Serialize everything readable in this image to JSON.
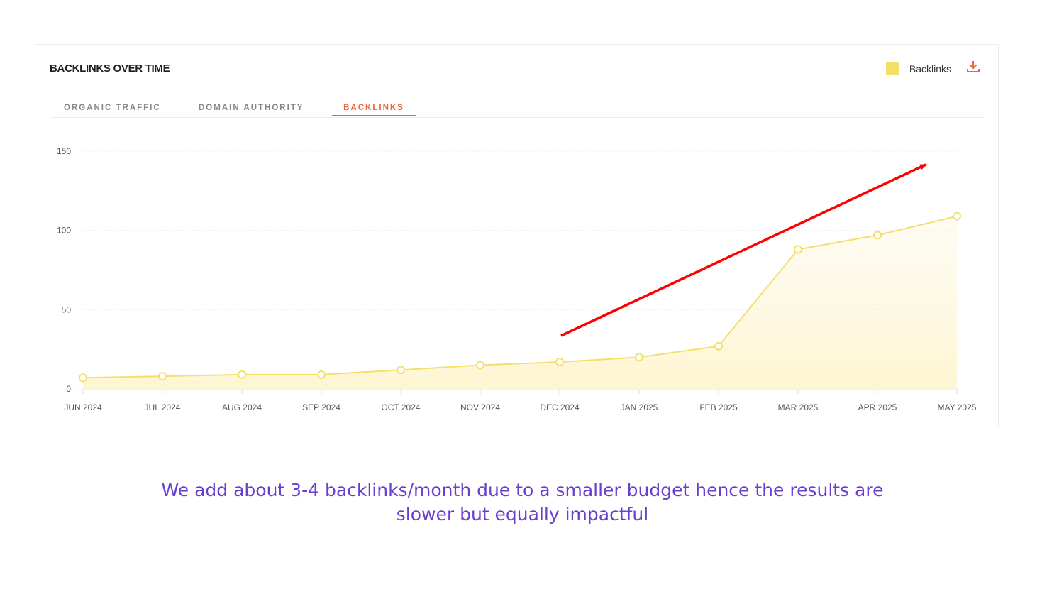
{
  "card": {
    "title": "BACKLINKS OVER TIME",
    "legend_label": "Backlinks",
    "legend_color": "#f4df6b",
    "download_icon": "download-icon",
    "tabs": [
      {
        "label": "ORGANIC TRAFFIC",
        "active": false
      },
      {
        "label": "DOMAIN AUTHORITY",
        "active": false
      },
      {
        "label": "BACKLINKS",
        "active": true
      }
    ],
    "accent_color": "#f0643c"
  },
  "chart_data": {
    "type": "area",
    "categories": [
      "JUN 2024",
      "JUL 2024",
      "AUG 2024",
      "SEP 2024",
      "OCT 2024",
      "NOV 2024",
      "DEC 2024",
      "JAN 2025",
      "FEB 2025",
      "MAR 2025",
      "APR 2025",
      "MAY 2025"
    ],
    "series": [
      {
        "name": "Backlinks",
        "values": [
          7,
          8,
          9,
          9,
          12,
          15,
          17,
          20,
          27,
          88,
          97,
          109
        ],
        "color": "#f4df6b"
      }
    ],
    "yticks": [
      "0",
      "50",
      "100",
      "150"
    ],
    "ylim": [
      0,
      150
    ],
    "grid": true,
    "legend": "top-right",
    "annotation": {
      "type": "arrow",
      "color": "#ff0000",
      "from_month": "DEC 2024",
      "direction": "up-right"
    }
  },
  "caption": {
    "line1": "We add about 3-4 backlinks/month due to a smaller budget hence the results are",
    "line2": "slower but equally impactful"
  }
}
